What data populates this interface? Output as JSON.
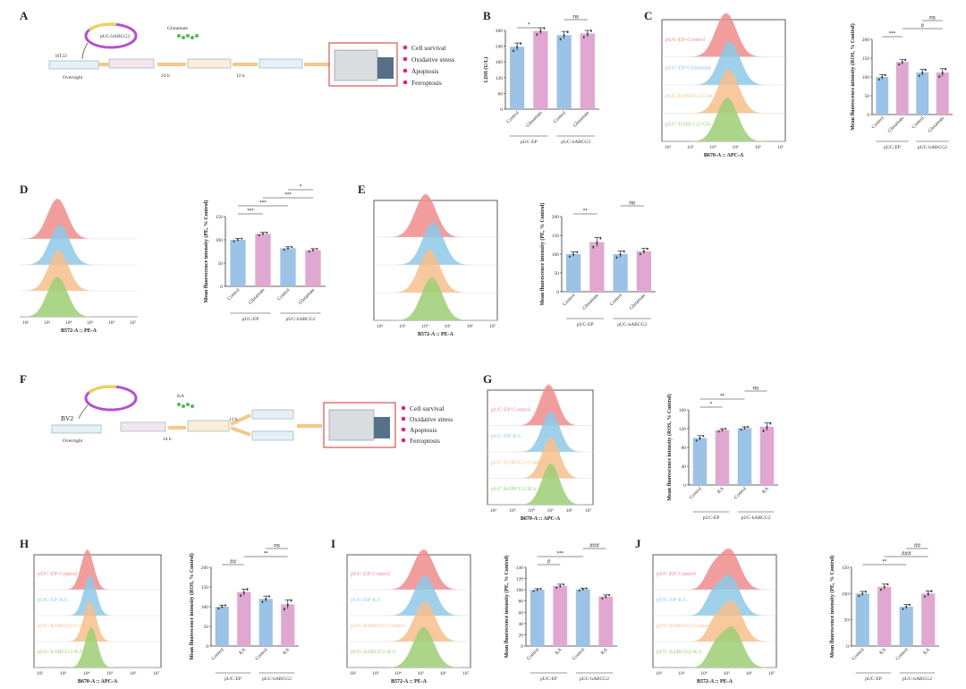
{
  "figure": {
    "panels": [
      "A",
      "B",
      "C",
      "D",
      "E",
      "F",
      "G",
      "H",
      "I",
      "J"
    ],
    "schematic_A": {
      "cell_line": "HT22",
      "plasmid": "pUC-hABCG2",
      "reagent": "Glutamate",
      "steps": [
        "Overnight",
        "24 h",
        "12 h"
      ],
      "readouts": [
        "Cell survival",
        "Oxidative stress",
        "Apoptosis",
        "Ferroptosis"
      ]
    },
    "schematic_F": {
      "cell_line": "BV2",
      "reagent": "KA",
      "steps": [
        "Overnight",
        "24 h",
        "12 h"
      ],
      "readouts": [
        "Cell survival",
        "Oxidative stress",
        "Apoptosis",
        "Ferroptosis"
      ]
    },
    "colors": {
      "red": "#f08c8c",
      "blue": "#8ec9e6",
      "orange": "#f7c08c",
      "green": "#9ccf76",
      "bar_blue": "#9cc3e6",
      "bar_pink": "#e0a8d0",
      "bullet": "#e0208a"
    },
    "groups": {
      "glu": [
        "Control",
        "Glutamate",
        "Control",
        "Glutamate"
      ],
      "ka": [
        "Control",
        "KA",
        "Control",
        "KA"
      ],
      "plasmids": [
        "pUC-EP",
        "pUC-hABCG2"
      ]
    },
    "flow": {
      "C": {
        "xlabel": "B670-A :: APC-A",
        "labels": [
          "pUC-EP-Control",
          "pUC-EP-Glutamate",
          "pUC-hABCG2-Con",
          "pUC-hABCG2-Glu"
        ]
      },
      "D": {
        "xlabel": "B572-A :: PE-A"
      },
      "E": {
        "xlabel": "B572-A :: PE-A"
      },
      "G": {
        "xlabel": "B670-A :: APC-A",
        "labels": [
          "pUC-EP-Control",
          "pUC-EP-KA",
          "pUC-hABCG2-Control",
          "pUC-hABCG2-KA"
        ]
      },
      "H": {
        "xlabel": "B670-A :: APC-A",
        "labels": [
          "pUC-EP-Control",
          "pUC-EP-KA",
          "pUC-hABCG2-Control",
          "pUC-hABCG2-KA"
        ]
      },
      "I": {
        "xlabel": "B572-A :: PE-A",
        "labels": [
          "pUC-EP-Control",
          "pUC-EP-KA",
          "pUC-hABCG2-Control",
          "pUC-hABCG2-KA"
        ]
      },
      "J": {
        "xlabel": "B572-A :: PE-A",
        "labels": [
          "pUC-EP-Control",
          "pUC-EP-KA",
          "pUC-hABCG2-Control",
          "pUC-hABCG2-KA"
        ]
      }
    },
    "flow_ticks": [
      "10²",
      "10³",
      "10⁴",
      "10⁵",
      "10⁶",
      "10⁷"
    ]
  },
  "chart_data": [
    {
      "panel": "B",
      "type": "bar",
      "title": "",
      "ylabel": "LDH (U/L)",
      "ylim": [
        0,
        300
      ],
      "yticks": [
        0,
        60,
        120,
        180,
        240,
        300
      ],
      "categories": [
        "Control",
        "Glutamate",
        "Control",
        "Glutamate"
      ],
      "values": [
        238,
        298,
        282,
        288
      ],
      "errors": [
        14,
        12,
        14,
        12
      ],
      "significance": [
        {
          "pair": [
            0,
            1
          ],
          "label": "*"
        },
        {
          "pair": [
            2,
            3
          ],
          "label": "ns"
        }
      ]
    },
    {
      "panel": "C",
      "type": "bar",
      "ylabel": "Mean fluorescence intensity (ROS, % Control)",
      "ylim": [
        0,
        200
      ],
      "yticks": [
        0,
        50,
        100,
        150,
        200
      ],
      "categories": [
        "Control",
        "Glutamate",
        "Control",
        "Glutamate"
      ],
      "values": [
        100,
        140,
        112,
        112
      ],
      "errors": [
        6,
        6,
        8,
        10
      ],
      "significance": [
        {
          "pair": [
            0,
            1
          ],
          "label": "***"
        },
        {
          "pair": [
            1,
            3
          ],
          "label": "#"
        },
        {
          "pair": [
            2,
            3
          ],
          "label": "ns"
        }
      ]
    },
    {
      "panel": "D",
      "type": "bar",
      "ylabel": "Mean fluorescence intensity (PE, % Control)",
      "ylim": [
        0,
        150
      ],
      "yticks": [
        0,
        50,
        100,
        150
      ],
      "categories": [
        "Control",
        "Glutamate",
        "Control",
        "Glutamate"
      ],
      "values": [
        100,
        113,
        82,
        78
      ],
      "errors": [
        3,
        3,
        3,
        3
      ],
      "significance": [
        {
          "pair": [
            0,
            1
          ],
          "label": "***"
        },
        {
          "pair": [
            0,
            2
          ],
          "label": "***"
        },
        {
          "pair": [
            1,
            3
          ],
          "label": "***"
        },
        {
          "pair": [
            2,
            3
          ],
          "label": "*"
        }
      ]
    },
    {
      "panel": "E",
      "type": "bar",
      "ylabel": "Mean fluorescence intensity (PE, % Control)",
      "ylim": [
        0,
        200
      ],
      "yticks": [
        0,
        50,
        100,
        150,
        200
      ],
      "categories": [
        "Control",
        "Glutamate",
        "Control",
        "Glutamate"
      ],
      "values": [
        100,
        132,
        100,
        108
      ],
      "errors": [
        6,
        12,
        8,
        7
      ],
      "significance": [
        {
          "pair": [
            0,
            1
          ],
          "label": "**"
        },
        {
          "pair": [
            2,
            3
          ],
          "label": "ns"
        }
      ]
    },
    {
      "panel": "G",
      "type": "bar",
      "ylabel": "Mean fluorescence intensity (ROS, % Control)",
      "ylim": [
        0,
        160
      ],
      "yticks": [
        0,
        40,
        80,
        120,
        160
      ],
      "categories": [
        "Control",
        "KA",
        "Control",
        "KA"
      ],
      "values": [
        100,
        117,
        121,
        124
      ],
      "errors": [
        5,
        3,
        3,
        8
      ],
      "significance": [
        {
          "pair": [
            0,
            1
          ],
          "label": "*"
        },
        {
          "pair": [
            0,
            2
          ],
          "label": "**"
        },
        {
          "pair": [
            2,
            3
          ],
          "label": "ns"
        }
      ]
    },
    {
      "panel": "H",
      "type": "bar",
      "ylabel": "Mean fluorescence intensity (ROS, % Control)",
      "ylim": [
        0,
        200
      ],
      "yticks": [
        0,
        50,
        100,
        150,
        200
      ],
      "categories": [
        "Control",
        "KA",
        "Control",
        "KA"
      ],
      "values": [
        100,
        137,
        120,
        106
      ],
      "errors": [
        4,
        8,
        7,
        11
      ],
      "significance": [
        {
          "pair": [
            0,
            1
          ],
          "label": "##"
        },
        {
          "pair": [
            1,
            3
          ],
          "label": "**"
        },
        {
          "pair": [
            2,
            3
          ],
          "label": "ns"
        }
      ]
    },
    {
      "panel": "I",
      "type": "bar",
      "ylabel": "Mean fluorescence intensity (PE, % Control)",
      "ylim": [
        0,
        140
      ],
      "yticks": [
        0,
        20,
        40,
        60,
        80,
        100,
        120,
        140
      ],
      "categories": [
        "Control",
        "KA",
        "Control",
        "KA"
      ],
      "values": [
        100,
        107,
        101,
        88
      ],
      "errors": [
        2,
        3,
        2,
        3
      ],
      "significance": [
        {
          "pair": [
            0,
            1
          ],
          "label": "#"
        },
        {
          "pair": [
            0,
            2
          ],
          "label": "***"
        },
        {
          "pair": [
            2,
            3
          ],
          "label": "###"
        }
      ]
    },
    {
      "panel": "J",
      "type": "bar",
      "ylabel": "Mean fluorescence intensity (PE, % Control)",
      "ylim": [
        0,
        150
      ],
      "yticks": [
        0,
        50,
        100,
        150
      ],
      "categories": [
        "Control",
        "KA",
        "Control",
        "KA"
      ],
      "values": [
        100,
        113,
        75,
        100
      ],
      "errors": [
        4,
        5,
        4,
        5
      ],
      "significance": [
        {
          "pair": [
            0,
            2
          ],
          "label": "**"
        },
        {
          "pair": [
            1,
            3
          ],
          "label": "###"
        },
        {
          "pair": [
            2,
            3
          ],
          "label": "##"
        }
      ]
    }
  ]
}
